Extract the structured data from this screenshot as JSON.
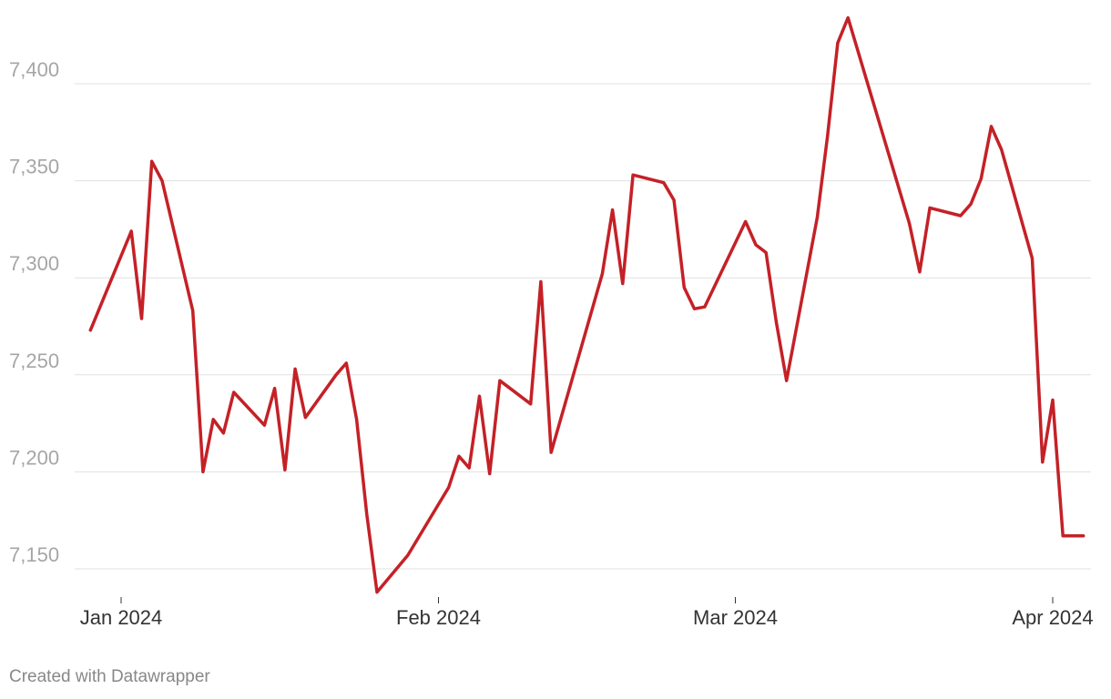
{
  "chart_data": {
    "type": "line",
    "title": "",
    "xlabel": "",
    "ylabel": "",
    "ylim": [
      7130,
      7440
    ],
    "y_ticks": [
      7150,
      7200,
      7250,
      7300,
      7350,
      7400
    ],
    "y_tick_labels": [
      "7,150",
      "7,200",
      "7,250",
      "7,300",
      "7,350",
      "7,400"
    ],
    "x_ticks": [
      "2024-01-01",
      "2024-02-01",
      "2024-03-01",
      "2024-04-01"
    ],
    "x_tick_labels": [
      "Jan 2024",
      "Feb 2024",
      "Mar 2024",
      "Apr 2024"
    ],
    "grid": true,
    "colors": {
      "series": "#c42127",
      "grid": "#e1e1e1",
      "y_tick_text": "#a6a6a6",
      "x_tick_text": "#333333"
    },
    "series": [
      {
        "x": [
          "2023-12-29",
          "2024-01-02",
          "2024-01-03",
          "2024-01-04",
          "2024-01-05",
          "2024-01-08",
          "2024-01-09",
          "2024-01-10",
          "2024-01-11",
          "2024-01-12",
          "2024-01-15",
          "2024-01-16",
          "2024-01-17",
          "2024-01-18",
          "2024-01-19",
          "2024-01-22",
          "2024-01-23",
          "2024-01-24",
          "2024-01-25",
          "2024-01-26",
          "2024-01-29",
          "2024-02-02",
          "2024-02-03",
          "2024-02-04",
          "2024-02-05",
          "2024-02-06",
          "2024-02-07",
          "2024-02-10",
          "2024-02-11",
          "2024-02-12",
          "2024-02-17",
          "2024-02-18",
          "2024-02-19",
          "2024-02-20",
          "2024-02-23",
          "2024-02-24",
          "2024-02-25",
          "2024-02-26",
          "2024-02-27",
          "2024-03-02",
          "2024-03-03",
          "2024-03-04",
          "2024-03-05",
          "2024-03-06",
          "2024-03-09",
          "2024-03-10",
          "2024-03-11",
          "2024-03-12",
          "2024-03-18",
          "2024-03-19",
          "2024-03-20",
          "2024-03-23",
          "2024-03-24",
          "2024-03-25",
          "2024-03-26",
          "2024-03-27",
          "2024-03-30",
          "2024-03-31",
          "2024-04-01",
          "2024-04-02",
          "2024-04-03",
          "2024-04-04"
        ],
        "y": [
          7273,
          7324,
          7279,
          7360,
          7350,
          7283,
          7200,
          7227,
          7220,
          7241,
          7224,
          7243,
          7201,
          7253,
          7228,
          7250,
          7256,
          7227,
          7178,
          7138,
          7157,
          7192,
          7208,
          7202,
          7239,
          7199,
          7247,
          7235,
          7298,
          7210,
          7302,
          7335,
          7297,
          7353,
          7349,
          7340,
          7295,
          7284,
          7285,
          7329,
          7317,
          7313,
          7277,
          7247,
          7331,
          7373,
          7421,
          7434,
          7328,
          7303,
          7336,
          7332,
          7338,
          7351,
          7378,
          7366,
          7310,
          7205,
          7237,
          7167,
          7167,
          7167
        ]
      }
    ]
  },
  "footer": {
    "credit": "Created with Datawrapper"
  }
}
